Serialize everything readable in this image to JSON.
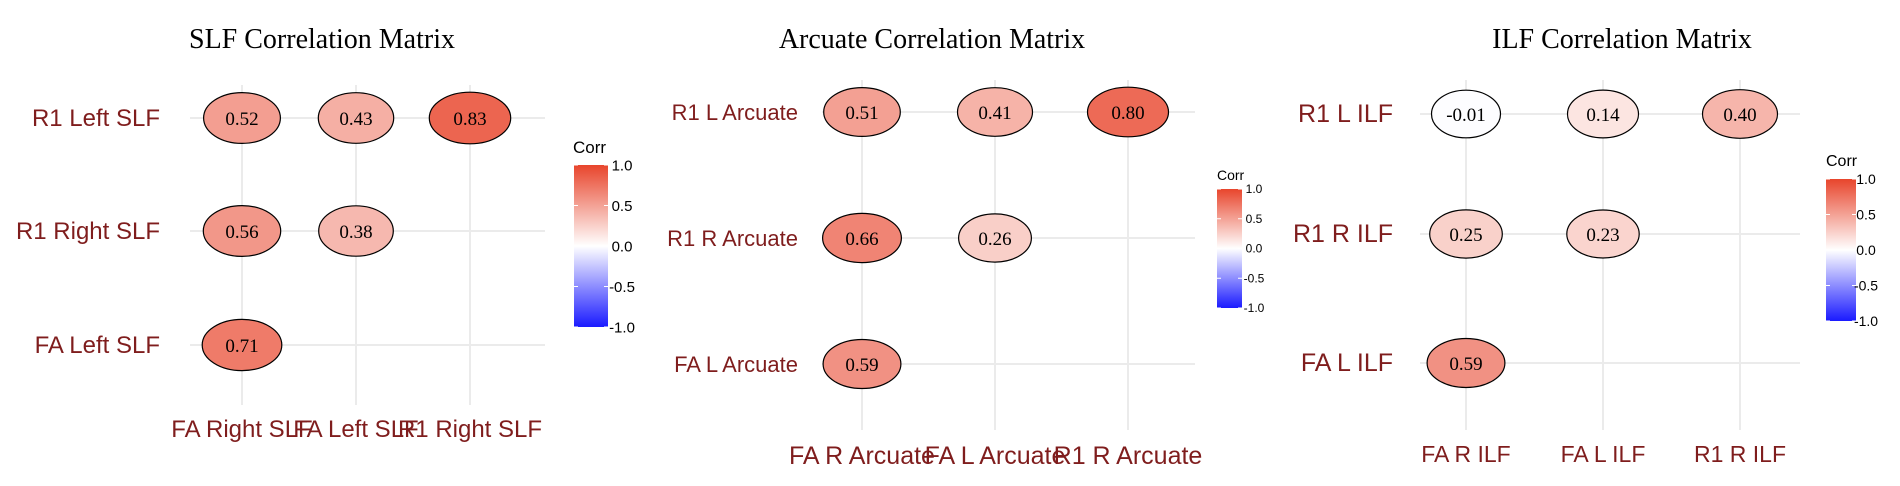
{
  "colors": {
    "negative": "#1a1aff",
    "zero": "#ffffff",
    "positive": "#e8452c",
    "label": "#7f1d1d"
  },
  "chart_data": [
    {
      "type": "heatmap",
      "title": "SLF Correlation Matrix",
      "rows": [
        "R1 Left SLF",
        "R1 Right SLF",
        "FA Left SLF"
      ],
      "columns": [
        "FA Right SLF",
        "FA Left SLF",
        "R1 Right SLF"
      ],
      "cells": [
        {
          "row": "R1 Left SLF",
          "col": "FA Right SLF",
          "value": 0.52,
          "label": "0.52"
        },
        {
          "row": "R1 Left SLF",
          "col": "FA Left SLF",
          "value": 0.43,
          "label": "0.43"
        },
        {
          "row": "R1 Left SLF",
          "col": "R1 Right SLF",
          "value": 0.83,
          "label": "0.83"
        },
        {
          "row": "R1 Right SLF",
          "col": "FA Right SLF",
          "value": 0.56,
          "label": "0.56"
        },
        {
          "row": "R1 Right SLF",
          "col": "FA Left SLF",
          "value": 0.38,
          "label": "0.38"
        },
        {
          "row": "FA Left SLF",
          "col": "FA Right SLF",
          "value": 0.71,
          "label": "0.71"
        }
      ],
      "legend": {
        "title": "Corr",
        "ticks": [
          "1.0",
          "0.5",
          "0.0",
          "-0.5",
          "-1.0"
        ],
        "range": [
          -1,
          1
        ]
      }
    },
    {
      "type": "heatmap",
      "title": "Arcuate Correlation Matrix",
      "rows": [
        "R1 L Arcuate",
        "R1 R Arcuate",
        "FA L Arcuate"
      ],
      "columns": [
        "FA R Arcuate",
        "FA L Arcuate",
        "R1 R Arcuate"
      ],
      "cells": [
        {
          "row": "R1 L Arcuate",
          "col": "FA R Arcuate",
          "value": 0.51,
          "label": "0.51"
        },
        {
          "row": "R1 L Arcuate",
          "col": "FA L Arcuate",
          "value": 0.41,
          "label": "0.41"
        },
        {
          "row": "R1 L Arcuate",
          "col": "R1 R Arcuate",
          "value": 0.8,
          "label": "0.80"
        },
        {
          "row": "R1 R Arcuate",
          "col": "FA R Arcuate",
          "value": 0.66,
          "label": "0.66"
        },
        {
          "row": "R1 R Arcuate",
          "col": "FA L Arcuate",
          "value": 0.26,
          "label": "0.26"
        },
        {
          "row": "FA L Arcuate",
          "col": "FA R Arcuate",
          "value": 0.59,
          "label": "0.59"
        }
      ],
      "legend": {
        "title": "Corr",
        "ticks": [
          "1.0",
          "0.5",
          "0.0",
          "-0.5",
          "-1.0"
        ],
        "range": [
          -1,
          1
        ]
      }
    },
    {
      "type": "heatmap",
      "title": "ILF Correlation Matrix",
      "rows": [
        "R1 L ILF",
        "R1 R ILF",
        "FA L ILF"
      ],
      "columns": [
        "FA R ILF",
        "FA L ILF",
        "R1 R ILF"
      ],
      "cells": [
        {
          "row": "R1 L ILF",
          "col": "FA R ILF",
          "value": -0.01,
          "label": "-0.01"
        },
        {
          "row": "R1 L ILF",
          "col": "FA L ILF",
          "value": 0.14,
          "label": "0.14"
        },
        {
          "row": "R1 L ILF",
          "col": "R1 R ILF",
          "value": 0.4,
          "label": "0.40"
        },
        {
          "row": "R1 R ILF",
          "col": "FA R ILF",
          "value": 0.25,
          "label": "0.25"
        },
        {
          "row": "R1 R ILF",
          "col": "FA L ILF",
          "value": 0.23,
          "label": "0.23"
        },
        {
          "row": "FA L ILF",
          "col": "FA R ILF",
          "value": 0.59,
          "label": "0.59"
        }
      ],
      "legend": {
        "title": "Corr",
        "ticks": [
          "1.0",
          "0.5",
          "0.0",
          "-0.5",
          "-1.0"
        ],
        "range": [
          -1,
          1
        ]
      }
    }
  ]
}
